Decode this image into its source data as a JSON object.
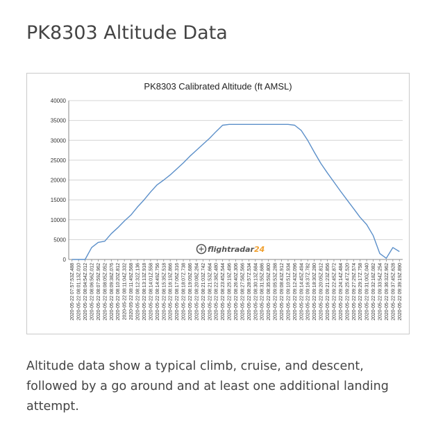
{
  "page": {
    "title": "PK8303 Altitude Data",
    "caption": "Altitude data show a typical climb, cruise, and descent, followed by a go around and at least one additional landing attempt."
  },
  "watermark": {
    "icon": "flightradar-plane-icon",
    "text": "flightradar",
    "number": "24"
  },
  "colors": {
    "line": "#5b8fc9",
    "grid": "#d4d4d4",
    "axis": "#888888",
    "accent": "#f0a030"
  },
  "chart_data": {
    "type": "line",
    "title": "PK8303 Calibrated Altitude (ft AMSL)",
    "xlabel": "",
    "ylabel": "",
    "ylim": [
      0,
      40000
    ],
    "y_ticks": [
      0,
      5000,
      10000,
      15000,
      20000,
      25000,
      30000,
      35000,
      40000
    ],
    "grid": true,
    "legend": "none",
    "categories": [
      "2020-05-22 07:57:53Z.488",
      "2020-05-22 08:01:13Z.010",
      "2020-05-22 08:04:54Z.012",
      "2020-05-22 08:06:56Z.012",
      "2020-05-22 08:07:59Z.962",
      "2020-05-22 08:08:05Z.052",
      "2020-05-22 08:09:38Z.076",
      "2020-05-22 08:10:20Z.812",
      "2020-05-22 08:11:04Z.332",
      "2020-05-22 08:11:49Z.568",
      "2020-05-22 08:12:32Z.136",
      "2020-05-22 08:13:13Z.918",
      "2020-05-22 08:14:01Z.558",
      "2020-05-22 08:14:49Z.756",
      "2020-05-22 08:15:35Z.518",
      "2020-05-22 08:16:19Z.866",
      "2020-05-22 08:17:06Z.316",
      "2020-05-22 08:18:07Z.738",
      "2020-05-22 08:19:09Z.686",
      "2020-05-22 08:20:08Z.264",
      "2020-05-22 08:21:03Z.742",
      "2020-05-22 08:21:53Z.664",
      "2020-05-22 08:22:38Z.480",
      "2020-05-22 08:23:45Z.544",
      "2020-05-22 08:25:19Z.496",
      "2020-05-22 08:26:40Z.306",
      "2020-05-22 08:27:58Z.566",
      "2020-05-22 08:28:57Z.534",
      "2020-05-22 08:30:13Z.684",
      "2020-05-22 08:31:55Z.686",
      "2020-05-22 08:35:59Z.800",
      "2020-05-22 09:05:53Z.288",
      "2020-05-22 09:08:43Z.912",
      "2020-05-22 09:10:51Z.934",
      "2020-05-22 09:12:43Z.096",
      "2020-05-22 09:14:45Z.494",
      "2020-05-22 09:16:37Z.782",
      "2020-05-22 09:18:30Z.280",
      "2020-05-22 09:20:05Z.812",
      "2020-05-22 09:21:23Z.856",
      "2020-05-22 09:22:45Z.872",
      "2020-05-22 09:24:14Z.484",
      "2020-05-22 09:25:47Z.520",
      "2020-05-22 09:27:29Z.574",
      "2020-05-22 09:29:17Z.758",
      "2020-05-22 09:31:00Z.040",
      "2020-05-22 09:32:18Z.082",
      "2020-05-22 09:33:54Z.254",
      "2020-05-22 09:36:32Z.962",
      "2020-05-22 09:37:45Z.628",
      "2020-05-22 09:39:19Z.890"
    ],
    "series": [
      {
        "values": [
          0,
          0,
          0,
          3000,
          4300,
          4600,
          6500,
          8000,
          9700,
          11200,
          13200,
          15000,
          17000,
          18800,
          20000,
          21300,
          22800,
          24300,
          26000,
          27500,
          29000,
          30500,
          32200,
          33800,
          34000,
          34000,
          34000,
          34000,
          34000,
          34000,
          34000,
          34000,
          34000,
          34000,
          33800,
          32500,
          30000,
          27000,
          24200,
          21800,
          19500,
          17200,
          15000,
          12800,
          10600,
          8800,
          6000,
          1500,
          300,
          3000,
          2000
        ]
      }
    ]
  }
}
